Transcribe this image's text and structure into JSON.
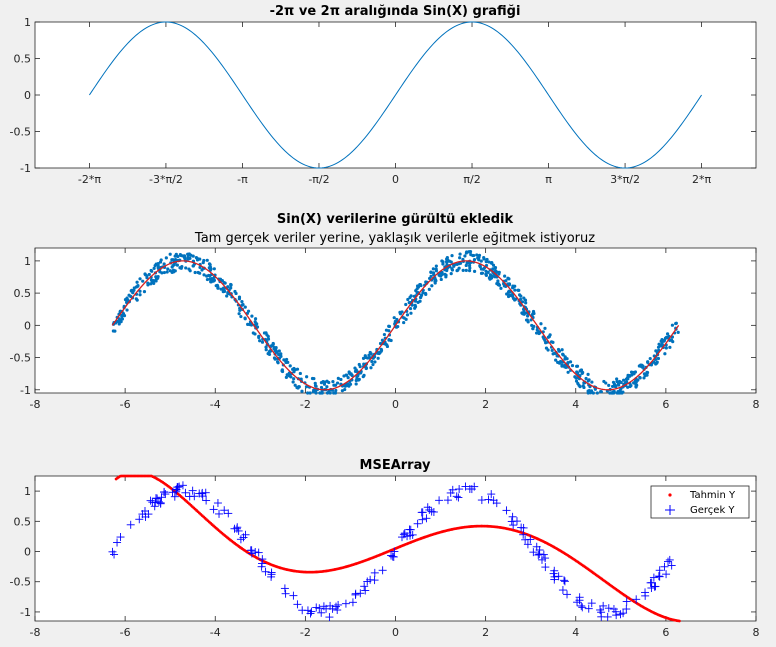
{
  "chart_data": [
    {
      "type": "line",
      "title": "-2π ve 2π aralığında Sin(X) grafiği",
      "xlim": [
        -7.4,
        7.4
      ],
      "ylim": [
        -1,
        1
      ],
      "x_ticks": [
        -6.2832,
        -4.7124,
        -3.1416,
        -1.5708,
        0,
        1.5708,
        3.1416,
        4.7124,
        6.2832
      ],
      "x_tick_labels": [
        "-2*π",
        "-3*π/2",
        "-π",
        "-π/2",
        "0",
        "π/2",
        "π",
        "3*π/2",
        "2*π"
      ],
      "y_ticks": [
        -1,
        -0.5,
        0,
        0.5,
        1
      ],
      "y_tick_labels": [
        "-1",
        "-0.5",
        "0",
        "0.5",
        "1"
      ],
      "series": [
        {
          "function": "sin(x)",
          "x_range": [
            -6.2832,
            6.2832
          ],
          "color": "#0072bd"
        }
      ]
    },
    {
      "type": "scatter",
      "title": "Sin(X) verilerine gürültü ekledik",
      "subtitle": "Tam gerçek veriler yerine, yaklaşık verilerle eğitmek istiyoruz",
      "xlim": [
        -8,
        8
      ],
      "ylim": [
        -1.05,
        1.2
      ],
      "x_ticks": [
        -8,
        -6,
        -4,
        -2,
        0,
        2,
        4,
        6,
        8
      ],
      "x_tick_labels": [
        "-8",
        "-6",
        "-4",
        "-2",
        "0",
        "2",
        "4",
        "6",
        "8"
      ],
      "y_ticks": [
        -1,
        -0.5,
        0,
        0.5,
        1
      ],
      "y_tick_labels": [
        "-1",
        "-0.5",
        "0",
        "0.5",
        "1"
      ],
      "series": [
        {
          "function": "sin(x) + noise",
          "noise_amplitude": 0.15,
          "x_range": [
            -6.2832,
            6.2832
          ],
          "points": 1000,
          "color": "#0072bd"
        },
        {
          "function": "sin(x)",
          "x_range": [
            -6.2832,
            6.2832
          ],
          "color": "#d62020"
        }
      ]
    },
    {
      "type": "scatter",
      "title": "MSEArray",
      "xlim": [
        -8,
        8
      ],
      "ylim": [
        -1.15,
        1.25
      ],
      "x_ticks": [
        -8,
        -6,
        -4,
        -2,
        0,
        2,
        4,
        6,
        8
      ],
      "x_tick_labels": [
        "-8",
        "-6",
        "-4",
        "-2",
        "0",
        "2",
        "4",
        "6",
        "8"
      ],
      "y_ticks": [
        -1,
        -0.5,
        0,
        0.5,
        1
      ],
      "y_tick_labels": [
        "-1",
        "-0.5",
        "0",
        "0.5",
        "1"
      ],
      "legend": {
        "position": "top-right",
        "entries": [
          "Tahmin Y",
          "Gerçek Y"
        ]
      },
      "series": [
        {
          "name": "Tahmin Y",
          "marker": "dot",
          "color": "#ff0000",
          "function": "cubic fit",
          "knots_x": [
            -6.2,
            -4.0,
            -2.0,
            0.0,
            2.0,
            4.0,
            6.3
          ],
          "knots_y": [
            1.2,
            0.4,
            -0.34,
            0.05,
            0.42,
            -0.15,
            -1.15
          ],
          "points": 400
        },
        {
          "name": "Gerçek Y",
          "marker": "plus",
          "color": "#0000ff",
          "function": "sin(x) + noise",
          "noise_amplitude": 0.1,
          "x_range": [
            -6.2832,
            6.2832
          ],
          "points": 200
        }
      ]
    }
  ]
}
